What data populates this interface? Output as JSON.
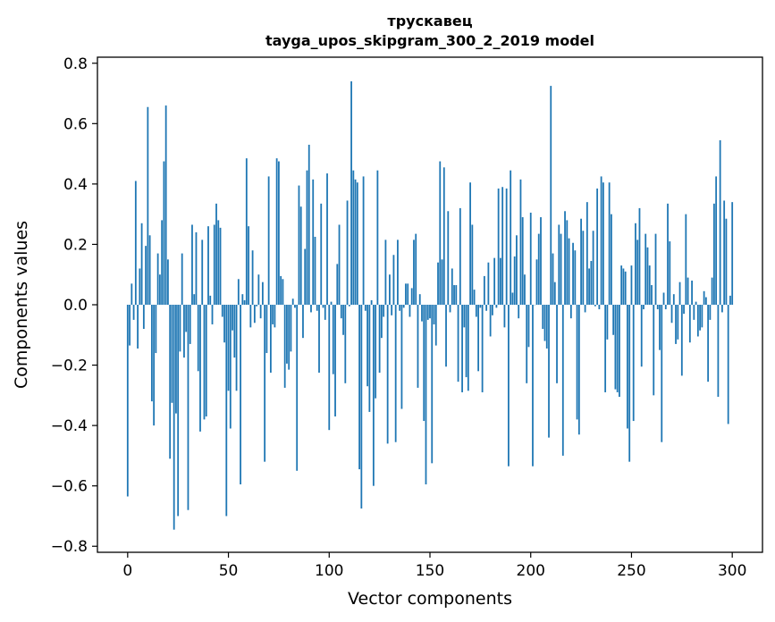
{
  "chart_data": {
    "type": "bar",
    "title_line1": "трускавец",
    "title_line2": "tayga_upos_skipgram_300_2_2019 model",
    "xlabel": "Vector components",
    "ylabel": "Components values",
    "xlim": [
      -15,
      315
    ],
    "ylim": [
      -0.82,
      0.82
    ],
    "xticks": [
      0,
      50,
      100,
      150,
      200,
      250,
      300
    ],
    "xtick_labels": [
      "0",
      "50",
      "100",
      "150",
      "200",
      "250",
      "300"
    ],
    "yticks": [
      0.8,
      0.6,
      0.4,
      0.2,
      0.0,
      -0.2,
      -0.4,
      -0.6,
      -0.8
    ],
    "ytick_labels": [
      "0.8",
      "0.6",
      "0.4",
      "0.2",
      "0.0",
      "−0.2",
      "−0.4",
      "−0.6",
      "−0.8"
    ],
    "bar_color": "#1f77b4",
    "values": [
      -0.635,
      -0.135,
      0.07,
      -0.05,
      0.41,
      -0.145,
      0.12,
      0.27,
      -0.08,
      0.195,
      0.655,
      0.23,
      -0.32,
      -0.4,
      -0.16,
      0.17,
      0.1,
      0.28,
      0.475,
      0.66,
      0.15,
      -0.51,
      -0.325,
      -0.745,
      -0.36,
      -0.7,
      -0.155,
      0.17,
      -0.175,
      -0.09,
      -0.68,
      -0.13,
      0.265,
      0.035,
      0.24,
      -0.22,
      -0.42,
      0.215,
      -0.38,
      -0.37,
      0.26,
      0.03,
      -0.065,
      0.265,
      0.335,
      0.28,
      0.255,
      -0.04,
      -0.125,
      -0.7,
      -0.285,
      -0.41,
      -0.085,
      -0.175,
      -0.285,
      0.085,
      -0.595,
      0.035,
      0.015,
      0.485,
      0.26,
      -0.075,
      0.18,
      -0.06,
      -0.005,
      0.1,
      -0.045,
      0.075,
      -0.52,
      -0.16,
      0.425,
      -0.225,
      -0.065,
      -0.075,
      0.485,
      0.475,
      0.095,
      0.085,
      -0.275,
      -0.195,
      -0.215,
      -0.155,
      0.02,
      -0.01,
      -0.55,
      0.395,
      0.325,
      -0.11,
      0.185,
      0.445,
      0.53,
      -0.025,
      0.415,
      0.225,
      -0.02,
      -0.225,
      0.335,
      -0.01,
      -0.05,
      0.435,
      -0.415,
      0.01,
      -0.23,
      -0.37,
      0.135,
      0.265,
      -0.045,
      -0.1,
      -0.26,
      0.345,
      -0.005,
      0.74,
      0.445,
      0.415,
      0.405,
      -0.545,
      -0.675,
      0.425,
      -0.02,
      -0.27,
      -0.355,
      0.015,
      -0.6,
      -0.31,
      0.445,
      -0.225,
      -0.11,
      -0.04,
      0.215,
      -0.46,
      0.1,
      -0.035,
      0.165,
      -0.455,
      0.215,
      -0.02,
      -0.345,
      -0.01,
      0.07,
      0.07,
      -0.04,
      0.055,
      0.215,
      0.235,
      -0.275,
      0.035,
      -0.055,
      -0.385,
      -0.595,
      -0.05,
      -0.045,
      -0.525,
      -0.065,
      -0.135,
      0.14,
      0.475,
      0.15,
      0.455,
      -0.205,
      0.31,
      -0.025,
      0.12,
      0.065,
      0.065,
      -0.255,
      0.32,
      -0.29,
      -0.075,
      -0.24,
      -0.285,
      0.405,
      0.265,
      0.05,
      -0.04,
      -0.22,
      -0.01,
      -0.29,
      0.095,
      -0.02,
      0.14,
      -0.105,
      -0.035,
      0.155,
      -0.01,
      0.385,
      0.155,
      0.39,
      -0.075,
      0.385,
      -0.535,
      0.445,
      0.04,
      0.16,
      0.23,
      -0.045,
      0.415,
      0.29,
      0.1,
      -0.26,
      -0.14,
      0.305,
      -0.535,
      0.0,
      0.15,
      0.235,
      0.29,
      -0.08,
      -0.12,
      -0.145,
      -0.44,
      0.725,
      0.17,
      0.075,
      -0.26,
      0.265,
      0.235,
      -0.5,
      0.31,
      0.28,
      0.22,
      -0.045,
      0.205,
      0.18,
      -0.38,
      -0.43,
      0.285,
      0.245,
      -0.025,
      0.34,
      0.12,
      0.145,
      0.245,
      -0.005,
      0.385,
      -0.015,
      0.425,
      0.405,
      -0.29,
      -0.115,
      0.405,
      0.3,
      -0.1,
      -0.28,
      -0.29,
      -0.305,
      0.13,
      0.12,
      0.11,
      -0.41,
      -0.52,
      0.13,
      -0.385,
      0.27,
      0.215,
      0.32,
      -0.205,
      -0.015,
      0.235,
      0.19,
      0.13,
      0.065,
      -0.3,
      0.235,
      -0.015,
      -0.15,
      -0.455,
      0.04,
      -0.015,
      0.335,
      0.21,
      -0.06,
      0.035,
      -0.13,
      -0.115,
      0.075,
      -0.235,
      -0.03,
      0.3,
      0.09,
      -0.125,
      0.08,
      -0.05,
      0.01,
      -0.105,
      -0.085,
      -0.075,
      0.045,
      0.025,
      -0.255,
      -0.05,
      0.09,
      0.335,
      0.425,
      -0.305,
      0.545,
      -0.025,
      0.345,
      0.285,
      -0.395,
      0.03,
      0.34
    ]
  }
}
